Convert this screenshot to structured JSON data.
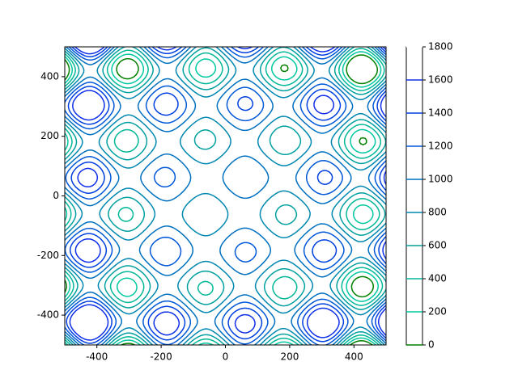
{
  "chart_data": {
    "type": "contour",
    "xlim": [
      -500,
      500
    ],
    "ylim": [
      -500,
      500
    ],
    "xticks": [
      -400,
      -200,
      0,
      200,
      400
    ],
    "yticks": [
      -400,
      -200,
      0,
      200,
      400
    ],
    "levels": [
      0,
      200,
      400,
      600,
      800,
      1000,
      1200,
      1400,
      1600,
      1800
    ],
    "colors": [
      "#008000",
      "#00c8a0",
      "#00b898",
      "#00a0a0",
      "#0088b0",
      "#0070c0",
      "#0058d8",
      "#0040e0",
      "#1030e8",
      "#ffffff"
    ],
    "colorbar_lim": [
      0,
      1800
    ]
  }
}
